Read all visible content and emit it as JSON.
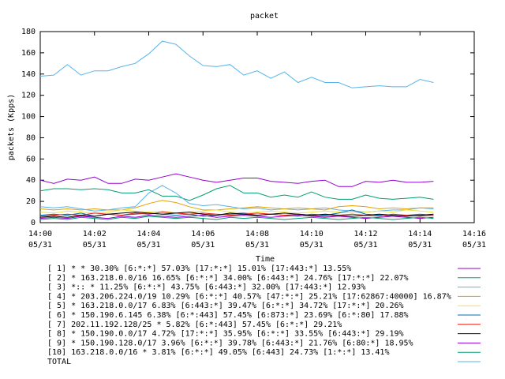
{
  "chart_data": {
    "type": "line",
    "title": "packet",
    "xlabel": "Time",
    "ylabel": "packets (Kpps)",
    "x": [
      840,
      840.5,
      841,
      841.5,
      842,
      842.5,
      843,
      843.5,
      844,
      844.5,
      845,
      845.5,
      846,
      846.5,
      847,
      847.5,
      848,
      848.5,
      849,
      849.5,
      850,
      850.5,
      851,
      851.5,
      852,
      852.5,
      853,
      853.5,
      854,
      854.5
    ],
    "xlim": [
      840,
      856
    ],
    "xticks": [
      {
        "value": 840,
        "label": "14:00",
        "date": "05/31"
      },
      {
        "value": 842,
        "label": "14:02",
        "date": "05/31"
      },
      {
        "value": 844,
        "label": "14:04",
        "date": "05/31"
      },
      {
        "value": 846,
        "label": "14:06",
        "date": "05/31"
      },
      {
        "value": 848,
        "label": "14:08",
        "date": "05/31"
      },
      {
        "value": 850,
        "label": "14:10",
        "date": "05/31"
      },
      {
        "value": 852,
        "label": "14:12",
        "date": "05/31"
      },
      {
        "value": 854,
        "label": "14:14",
        "date": "05/31"
      },
      {
        "value": 856,
        "label": "14:16",
        "date": "05/31"
      }
    ],
    "ylim": [
      0,
      180
    ],
    "yticks": [
      0,
      20,
      40,
      60,
      80,
      100,
      120,
      140,
      160,
      180
    ],
    "series": [
      {
        "name": "[ 1] * * 30.30%  [6:*:*] 57.03% [17:*:*] 15.01% [17:443:*] 13.55%",
        "color": "#9400d3",
        "values": [
          40,
          37,
          41,
          40,
          43,
          37,
          37,
          41,
          40,
          43,
          46,
          43,
          40,
          38,
          40,
          42,
          42,
          39,
          38,
          37,
          39,
          40,
          34,
          34,
          39,
          38,
          40,
          38,
          38,
          39
        ]
      },
      {
        "name": "[ 2] * 163.218.0.0/16 16.65%  [6:*:*] 34.00% [6:443:*] 24.76% [17:*:*] 22.07%",
        "color": "#009e73",
        "values": [
          30,
          32,
          32,
          31,
          32,
          31,
          28,
          28,
          31,
          25,
          25,
          21,
          26,
          32,
          35,
          28,
          28,
          24,
          26,
          24,
          29,
          24,
          22,
          22,
          26,
          23,
          22,
          23,
          24,
          22
        ]
      },
      {
        "name": "[ 3] *:: * 11.25%  [6:*:*] 43.75% [6:443:*] 32.00% [17:443:*] 12.93%",
        "color": "#56b4e9",
        "values": [
          15,
          14,
          15,
          13,
          11,
          12,
          14,
          15,
          28,
          35,
          28,
          18,
          16,
          17,
          15,
          13,
          14,
          12,
          13,
          12,
          13,
          14,
          12,
          11,
          10,
          11,
          12,
          12,
          14,
          13
        ]
      },
      {
        "name": "[ 4] * 203.206.224.0/19 10.29%  [6:*:*] 40.57% [47:*:*] 25.21% [17:62867:40000] 16.87%",
        "color": "#e69f00",
        "values": [
          13,
          12,
          13,
          12,
          13,
          12,
          12,
          14,
          18,
          21,
          19,
          15,
          12,
          12,
          13,
          14,
          15,
          14,
          13,
          14,
          13,
          12,
          15,
          16,
          15,
          13,
          14,
          13,
          14,
          14
        ]
      },
      {
        "name": "[ 5] * 163.218.0.0/17 6.83%  [6:443:*] 39.47% [6:*:*] 34.72% [17:*:*] 20.26%",
        "color": "#f0e442",
        "values": [
          10,
          9,
          11,
          10,
          9,
          10,
          12,
          11,
          10,
          11,
          9,
          10,
          11,
          12,
          10,
          9,
          10,
          11,
          10,
          9,
          10,
          11,
          10,
          9,
          10,
          11,
          10,
          12,
          11,
          10
        ]
      },
      {
        "name": "[ 6] * 150.190.6.145 6.38%  [6:*:443] 57.45% [6:873:*] 23.69% [6:*:80] 17.88%",
        "color": "#0072b2",
        "values": [
          7,
          8,
          7,
          9,
          6,
          8,
          7,
          8,
          9,
          8,
          7,
          8,
          6,
          7,
          8,
          9,
          7,
          8,
          7,
          6,
          8,
          7,
          9,
          12,
          8,
          7,
          6,
          7,
          8,
          7
        ]
      },
      {
        "name": "[ 7] 202.11.192.128/25 * 5.82%  [6:*:443] 57.45% [6:*:*] 29.21%",
        "color": "#e51e10",
        "values": [
          6,
          7,
          8,
          7,
          9,
          8,
          7,
          9,
          8,
          10,
          9,
          8,
          9,
          8,
          7,
          8,
          9,
          8,
          7,
          8,
          7,
          6,
          7,
          8,
          7,
          6,
          8,
          7,
          6,
          7
        ]
      },
      {
        "name": "[ 8] * 150.190.0.0/17 4.72%  [17:*:*] 35.95% [6:*:*] 33.55% [6:443:*] 29.19%",
        "color": "#000000",
        "values": [
          5,
          6,
          5,
          7,
          6,
          8,
          9,
          10,
          9,
          8,
          9,
          10,
          8,
          7,
          9,
          8,
          7,
          8,
          9,
          8,
          7,
          8,
          7,
          6,
          7,
          8,
          7,
          6,
          7,
          8
        ]
      },
      {
        "name": "[ 9] * 150.190.128.0/17 3.96%  [6:*:*] 39.78% [6:443:*] 21.76% [6:80:*] 18.95%",
        "color": "#9400d3",
        "values": [
          4,
          5,
          4,
          6,
          5,
          4,
          6,
          5,
          7,
          6,
          5,
          6,
          7,
          5,
          6,
          7,
          6,
          5,
          6,
          7,
          6,
          5,
          6,
          5,
          4,
          5,
          6,
          5,
          4,
          5
        ]
      },
      {
        "name": "[10] 163.218.0.0/16 * 3.81%  [6:*:*] 49.05% [6:443] 24.73% [1:*:*] 13.41%",
        "color": "#009e73",
        "values": [
          3,
          4,
          3,
          5,
          4,
          3,
          5,
          4,
          6,
          5,
          4,
          5,
          4,
          3,
          5,
          4,
          5,
          4,
          3,
          4,
          5,
          4,
          3,
          4,
          5,
          4,
          3,
          4,
          5,
          4
        ]
      },
      {
        "name": "TOTAL",
        "color": "#56b4e9",
        "values": [
          138,
          139,
          149,
          139,
          143,
          143,
          147,
          150,
          159,
          171,
          168,
          157,
          148,
          147,
          149,
          139,
          143,
          136,
          142,
          132,
          137,
          132,
          132,
          127,
          128,
          129,
          128,
          128,
          135,
          132
        ]
      }
    ]
  }
}
